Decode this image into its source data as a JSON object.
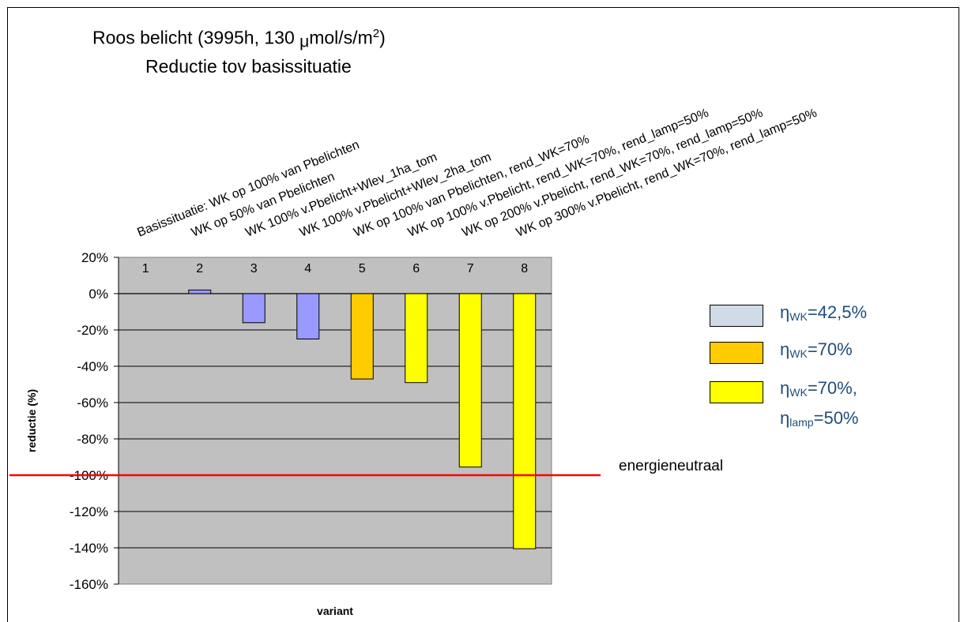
{
  "chart_data": {
    "type": "bar",
    "title_line1_prefix": "Roos belicht (3995h, 130 ",
    "title_mu": "μ",
    "title_line1_unit": "mol/s/m",
    "title_line1_sup": "2",
    "title_line1_suffix": ")",
    "title_line2": "Reductie tov basissituatie",
    "xlabel": "variant",
    "ylabel": "reductie (%)",
    "ylim": [
      -160,
      20
    ],
    "y_ticks": [
      20,
      0,
      -20,
      -40,
      -60,
      -80,
      -100,
      -120,
      -140,
      -160
    ],
    "y_tick_suffix": "%",
    "categories": [
      "1",
      "2",
      "3",
      "4",
      "5",
      "6",
      "7",
      "8"
    ],
    "category_descriptions": [
      "Basissituatie: WK op 100% van Pbelichten",
      "WK op 50% van Pbelichten",
      "WK 100% v.Pbelicht+Wlev_1ha_tom",
      "WK 100% v.Pbelicht+Wlev_2ha_tom",
      "WK op 100% van Pbelichten, rend_WK=70%",
      "WK op 100% v.Pbelicht, rend_WK=70%, rend_lamp=50%",
      "WK op 200% v.Pbelicht, rend_WK=70%, rend_lamp=50%",
      "WK op 300% v.Pbelicht, rend_WK=70%, rend_lamp=50%"
    ],
    "values": [
      0,
      2,
      -16,
      -25,
      -47,
      -49,
      -95.5,
      -140.5
    ],
    "groups": [
      "g1",
      "g1",
      "g1",
      "g1",
      "g2",
      "g3",
      "g3",
      "g3"
    ],
    "colors": {
      "g1": "#9999ff",
      "g2": "#ffcc00",
      "g3": "#ffff00"
    },
    "plot_background": "#c0c0c0",
    "reference_line": {
      "value": -100,
      "label": "energieneutraal",
      "color": "#ff0000"
    },
    "legend": [
      {
        "key": "g1",
        "swatch": "#cfdbe6",
        "eta": "η",
        "sub1": "WK",
        "text1": "=42,5%",
        "sub2": "",
        "text2": ""
      },
      {
        "key": "g2",
        "swatch": "#ffcc00",
        "eta": "η",
        "sub1": "WK",
        "text1": "=70%",
        "sub2": "",
        "text2": ""
      },
      {
        "key": "g3",
        "swatch": "#ffff00",
        "eta": "η",
        "sub1": "WK",
        "text1": "=70%,",
        "sub2": "lamp",
        "text2": "=50%"
      }
    ],
    "legend_placement": "right",
    "grid": true
  }
}
